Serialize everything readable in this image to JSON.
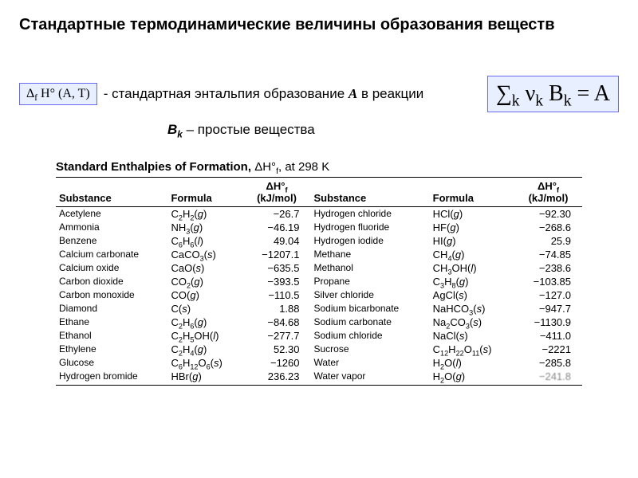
{
  "title": "Стандартные термодинамические величины образования веществ",
  "formula_left": "Δ<sub>f</sub> H° (A, T)",
  "desc1_prefix": "- стандартная энтальпия образование ",
  "desc1_bold": "A",
  "desc1_suffix": " в реакции",
  "formula_right": "∑<sub>k</sub> ν<sub>k</sub> B<sub>k</sub> = A",
  "row2_bk": "B",
  "row2_bk_sub": "k",
  "row2_rest": " – простые вещества",
  "table_caption_strong": "Standard Enthalpies of Formation,",
  "table_caption_rest": "   ΔH°<sub>f</sub>, at 298 K",
  "headers": {
    "substance": "Substance",
    "formula": "Formula",
    "dh": "ΔH°<sub>f</sub><br>(kJ/mol)"
  },
  "colors": {
    "box_border": "#6a6af0",
    "box_bg": "#e8f0ff",
    "text": "#000000",
    "bg": "#ffffff"
  },
  "rows_left": [
    {
      "s": "Acetylene",
      "f": "C<sub>2</sub>H<sub>2</sub>(<span class='state'>g</span>)",
      "v": "−26.7"
    },
    {
      "s": "Ammonia",
      "f": "NH<sub>3</sub>(<span class='state'>g</span>)",
      "v": "−46.19"
    },
    {
      "s": "Benzene",
      "f": "C<sub>6</sub>H<sub>6</sub>(<span class='state'>l</span>)",
      "v": "49.04"
    },
    {
      "s": "Calcium carbonate",
      "f": "CaCO<sub>3</sub>(<span class='state'>s</span>)",
      "v": "−1207.1"
    },
    {
      "s": "Calcium oxide",
      "f": "CaO(<span class='state'>s</span>)",
      "v": "−635.5"
    },
    {
      "s": "Carbon dioxide",
      "f": "CO<sub>2</sub>(<span class='state'>g</span>)",
      "v": "−393.5"
    },
    {
      "s": "Carbon monoxide",
      "f": "CO(<span class='state'>g</span>)",
      "v": "−110.5"
    },
    {
      "s": "Diamond",
      "f": "C(<span class='state'>s</span>)",
      "v": "1.88"
    },
    {
      "s": "Ethane",
      "f": "C<sub>2</sub>H<sub>6</sub>(<span class='state'>g</span>)",
      "v": "−84.68"
    },
    {
      "s": "Ethanol",
      "f": "C<sub>2</sub>H<sub>5</sub>OH(<span class='state'>l</span>)",
      "v": "−277.7"
    },
    {
      "s": "Ethylene",
      "f": "C<sub>2</sub>H<sub>4</sub>(<span class='state'>g</span>)",
      "v": "52.30"
    },
    {
      "s": "Glucose",
      "f": "C<sub>6</sub>H<sub>12</sub>O<sub>6</sub>(<span class='state'>s</span>)",
      "v": "−1260"
    },
    {
      "s": "Hydrogen bromide",
      "f": "HBr(<span class='state'>g</span>)",
      "v": "236.23"
    }
  ],
  "rows_right": [
    {
      "s": "Hydrogen chloride",
      "f": "HCl(<span class='state'>g</span>)",
      "v": "−92.30"
    },
    {
      "s": "Hydrogen fluoride",
      "f": "HF(<span class='state'>g</span>)",
      "v": "−268.6"
    },
    {
      "s": "Hydrogen iodide",
      "f": "HI(<span class='state'>g</span>)",
      "v": "25.9"
    },
    {
      "s": "Methane",
      "f": "CH<sub>4</sub>(<span class='state'>g</span>)",
      "v": "−74.85"
    },
    {
      "s": "Methanol",
      "f": "CH<sub>3</sub>OH(<span class='state'>l</span>)",
      "v": "−238.6"
    },
    {
      "s": "Propane",
      "f": "C<sub>3</sub>H<sub>8</sub>(<span class='state'>g</span>)",
      "v": "−103.85"
    },
    {
      "s": "Silver chloride",
      "f": "AgCl(<span class='state'>s</span>)",
      "v": "−127.0"
    },
    {
      "s": "Sodium bicarbonate",
      "f": "NaHCO<sub>3</sub>(<span class='state'>s</span>)",
      "v": "−947.7"
    },
    {
      "s": "Sodium carbonate",
      "f": "Na<sub>2</sub>CO<sub>3</sub>(<span class='state'>s</span>)",
      "v": "−1130.9"
    },
    {
      "s": "Sodium chloride",
      "f": "NaCl(<span class='state'>s</span>)",
      "v": "−411.0"
    },
    {
      "s": "Sucrose",
      "f": "C<sub>12</sub>H<sub>22</sub>O<sub>11</sub>(<span class='state'>s</span>)",
      "v": "−2221"
    },
    {
      "s": "Water",
      "f": "H<sub>2</sub>O(<span class='state'>l</span>)",
      "v": "−285.8"
    },
    {
      "s": "Water vapor",
      "f": "H<sub>2</sub>O(<span class='state'>g</span>)",
      "v": "<span class='blur'>−241.8</span>"
    }
  ]
}
